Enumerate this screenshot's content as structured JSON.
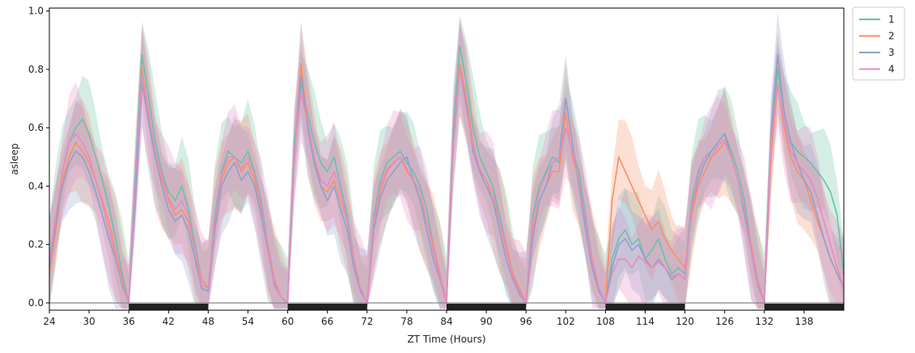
{
  "chart_data": {
    "type": "line",
    "title": "",
    "xlabel": "ZT Time (Hours)",
    "ylabel": "asleep",
    "xlim": [
      24,
      144
    ],
    "ylim": [
      -0.025,
      1.01
    ],
    "x_ticks": [
      24,
      30,
      36,
      42,
      48,
      54,
      60,
      66,
      72,
      78,
      84,
      90,
      96,
      102,
      108,
      114,
      120,
      126,
      132,
      138
    ],
    "y_ticks": [
      0.0,
      0.2,
      0.4,
      0.6,
      0.8,
      1.0
    ],
    "x_tick_labels": [
      "24",
      "30",
      "36",
      "42",
      "48",
      "54",
      "60",
      "66",
      "72",
      "78",
      "84",
      "90",
      "96",
      "102",
      "108",
      "114",
      "120",
      "126",
      "132",
      "138"
    ],
    "y_tick_labels": [
      "0.0",
      "0.2",
      "0.4",
      "0.6",
      "0.8",
      "1.0"
    ],
    "grid": false,
    "legend_placement": "outside-top-right",
    "baseline_y": 0.0,
    "dark_periods": [
      [
        36,
        48
      ],
      [
        60,
        72
      ],
      [
        84,
        96
      ],
      [
        108,
        120
      ],
      [
        132,
        144
      ]
    ],
    "series": [
      {
        "name": "1",
        "color": "#66c2a5",
        "x": [
          24,
          25,
          26,
          27,
          28,
          29,
          30,
          31,
          32,
          33,
          34,
          35,
          36,
          37,
          38,
          39,
          40,
          41,
          42,
          43,
          44,
          45,
          46,
          47,
          48,
          49,
          50,
          51,
          52,
          53,
          54,
          55,
          56,
          57,
          58,
          59,
          60,
          61,
          62,
          63,
          64,
          65,
          66,
          67,
          68,
          69,
          70,
          71,
          72,
          73,
          74,
          75,
          76,
          77,
          78,
          79,
          80,
          81,
          82,
          83,
          84,
          85,
          86,
          87,
          88,
          89,
          90,
          91,
          92,
          93,
          94,
          95,
          96,
          97,
          98,
          99,
          100,
          101,
          102,
          103,
          104,
          105,
          106,
          107,
          108,
          109,
          110,
          111,
          112,
          113,
          114,
          115,
          116,
          117,
          118,
          119,
          120,
          121,
          122,
          123,
          124,
          125,
          126,
          127,
          128,
          129,
          130,
          131,
          132,
          133,
          134,
          135,
          136,
          137,
          138,
          139,
          140,
          141,
          142,
          143,
          144
        ],
        "y": [
          0.15,
          0.3,
          0.45,
          0.55,
          0.6,
          0.63,
          0.58,
          0.5,
          0.42,
          0.33,
          0.22,
          0.1,
          0.0,
          0.45,
          0.85,
          0.7,
          0.55,
          0.45,
          0.38,
          0.35,
          0.4,
          0.32,
          0.2,
          0.08,
          0.05,
          0.3,
          0.45,
          0.52,
          0.5,
          0.48,
          0.52,
          0.45,
          0.35,
          0.2,
          0.08,
          0.02,
          0.0,
          0.55,
          0.75,
          0.65,
          0.55,
          0.48,
          0.45,
          0.5,
          0.4,
          0.3,
          0.15,
          0.05,
          0.0,
          0.3,
          0.42,
          0.48,
          0.5,
          0.52,
          0.48,
          0.45,
          0.4,
          0.32,
          0.2,
          0.1,
          0.0,
          0.6,
          0.88,
          0.75,
          0.6,
          0.5,
          0.45,
          0.4,
          0.3,
          0.2,
          0.1,
          0.05,
          0.0,
          0.3,
          0.4,
          0.45,
          0.5,
          0.48,
          0.6,
          0.52,
          0.45,
          0.3,
          0.15,
          0.05,
          0.0,
          0.15,
          0.22,
          0.25,
          0.2,
          0.22,
          0.15,
          0.18,
          0.22,
          0.15,
          0.1,
          0.12,
          0.1,
          0.35,
          0.45,
          0.5,
          0.52,
          0.55,
          0.58,
          0.52,
          0.45,
          0.35,
          0.2,
          0.08,
          0.0,
          0.55,
          0.8,
          0.65,
          0.55,
          0.52,
          0.5,
          0.48,
          0.45,
          0.42,
          0.38,
          0.3,
          0.1
        ]
      },
      {
        "name": "2",
        "color": "#fc8d62",
        "x": [
          24,
          25,
          26,
          27,
          28,
          29,
          30,
          31,
          32,
          33,
          34,
          35,
          36,
          37,
          38,
          39,
          40,
          41,
          42,
          43,
          44,
          45,
          46,
          47,
          48,
          49,
          50,
          51,
          52,
          53,
          54,
          55,
          56,
          57,
          58,
          59,
          60,
          61,
          62,
          63,
          64,
          65,
          66,
          67,
          68,
          69,
          70,
          71,
          72,
          73,
          74,
          75,
          76,
          77,
          78,
          79,
          80,
          81,
          82,
          83,
          84,
          85,
          86,
          87,
          88,
          89,
          90,
          91,
          92,
          93,
          94,
          95,
          96,
          97,
          98,
          99,
          100,
          101,
          102,
          103,
          104,
          105,
          106,
          107,
          108,
          109,
          110,
          111,
          112,
          113,
          114,
          115,
          116,
          117,
          118,
          119,
          120,
          121,
          122,
          123,
          124,
          125,
          126,
          127,
          128,
          129,
          130,
          131,
          132,
          133,
          134,
          135,
          136,
          137,
          138,
          139,
          140,
          141,
          142,
          143,
          144
        ],
        "y": [
          0.1,
          0.25,
          0.42,
          0.5,
          0.55,
          0.52,
          0.48,
          0.42,
          0.35,
          0.28,
          0.18,
          0.08,
          0.0,
          0.4,
          0.8,
          0.65,
          0.5,
          0.42,
          0.35,
          0.3,
          0.32,
          0.28,
          0.18,
          0.08,
          0.05,
          0.28,
          0.42,
          0.48,
          0.5,
          0.45,
          0.48,
          0.42,
          0.32,
          0.2,
          0.08,
          0.02,
          0.0,
          0.5,
          0.82,
          0.62,
          0.5,
          0.4,
          0.38,
          0.42,
          0.35,
          0.28,
          0.15,
          0.05,
          0.0,
          0.25,
          0.38,
          0.45,
          0.48,
          0.5,
          0.45,
          0.42,
          0.35,
          0.28,
          0.2,
          0.1,
          0.0,
          0.55,
          0.82,
          0.7,
          0.55,
          0.45,
          0.42,
          0.35,
          0.28,
          0.2,
          0.1,
          0.05,
          0.0,
          0.25,
          0.35,
          0.4,
          0.45,
          0.45,
          0.65,
          0.5,
          0.42,
          0.28,
          0.15,
          0.05,
          0.0,
          0.35,
          0.5,
          0.45,
          0.4,
          0.35,
          0.3,
          0.25,
          0.28,
          0.22,
          0.18,
          0.15,
          0.12,
          0.3,
          0.4,
          0.45,
          0.5,
          0.52,
          0.55,
          0.5,
          0.42,
          0.32,
          0.2,
          0.08,
          0.0,
          0.5,
          0.75,
          0.6,
          0.5,
          0.45,
          0.42,
          0.35,
          0.28,
          0.22,
          0.15,
          0.1,
          0.05
        ]
      },
      {
        "name": "3",
        "color": "#8da0cb",
        "x": [
          24,
          25,
          26,
          27,
          28,
          29,
          30,
          31,
          32,
          33,
          34,
          35,
          36,
          37,
          38,
          39,
          40,
          41,
          42,
          43,
          44,
          45,
          46,
          47,
          48,
          49,
          50,
          51,
          52,
          53,
          54,
          55,
          56,
          57,
          58,
          59,
          60,
          61,
          62,
          63,
          64,
          65,
          66,
          67,
          68,
          69,
          70,
          71,
          72,
          73,
          74,
          75,
          76,
          77,
          78,
          79,
          80,
          81,
          82,
          83,
          84,
          85,
          86,
          87,
          88,
          89,
          90,
          91,
          92,
          93,
          94,
          95,
          96,
          97,
          98,
          99,
          100,
          101,
          102,
          103,
          104,
          105,
          106,
          107,
          108,
          109,
          110,
          111,
          112,
          113,
          114,
          115,
          116,
          117,
          118,
          119,
          120,
          121,
          122,
          123,
          124,
          125,
          126,
          127,
          128,
          129,
          130,
          131,
          132,
          133,
          134,
          135,
          136,
          137,
          138,
          139,
          140,
          141,
          142,
          143,
          144
        ],
        "y": [
          0.12,
          0.28,
          0.4,
          0.48,
          0.52,
          0.5,
          0.45,
          0.38,
          0.3,
          0.22,
          0.15,
          0.06,
          0.0,
          0.35,
          0.75,
          0.62,
          0.5,
          0.4,
          0.32,
          0.28,
          0.3,
          0.25,
          0.15,
          0.05,
          0.04,
          0.25,
          0.4,
          0.45,
          0.48,
          0.42,
          0.45,
          0.4,
          0.3,
          0.18,
          0.06,
          0.02,
          0.0,
          0.5,
          0.78,
          0.6,
          0.48,
          0.4,
          0.35,
          0.4,
          0.32,
          0.25,
          0.12,
          0.04,
          0.0,
          0.25,
          0.36,
          0.42,
          0.45,
          0.48,
          0.5,
          0.42,
          0.35,
          0.25,
          0.15,
          0.08,
          0.0,
          0.55,
          0.8,
          0.68,
          0.52,
          0.45,
          0.4,
          0.35,
          0.25,
          0.15,
          0.08,
          0.03,
          0.0,
          0.22,
          0.35,
          0.4,
          0.48,
          0.5,
          0.7,
          0.55,
          0.4,
          0.25,
          0.12,
          0.04,
          0.0,
          0.12,
          0.2,
          0.22,
          0.18,
          0.2,
          0.15,
          0.12,
          0.15,
          0.12,
          0.08,
          0.1,
          0.08,
          0.32,
          0.42,
          0.48,
          0.52,
          0.55,
          0.58,
          0.5,
          0.42,
          0.3,
          0.18,
          0.06,
          0.0,
          0.58,
          0.85,
          0.65,
          0.55,
          0.48,
          0.42,
          0.38,
          0.3,
          0.22,
          0.15,
          0.1,
          0.05
        ]
      },
      {
        "name": "4",
        "color": "#e78ac3",
        "x": [
          24,
          25,
          26,
          27,
          28,
          29,
          30,
          31,
          32,
          33,
          34,
          35,
          36,
          37,
          38,
          39,
          40,
          41,
          42,
          43,
          44,
          45,
          46,
          47,
          48,
          49,
          50,
          51,
          52,
          53,
          54,
          55,
          56,
          57,
          58,
          59,
          60,
          61,
          62,
          63,
          64,
          65,
          66,
          67,
          68,
          69,
          70,
          71,
          72,
          73,
          74,
          75,
          76,
          77,
          78,
          79,
          80,
          81,
          82,
          83,
          84,
          85,
          86,
          87,
          88,
          89,
          90,
          91,
          92,
          93,
          94,
          95,
          96,
          97,
          98,
          99,
          100,
          101,
          102,
          103,
          104,
          105,
          106,
          107,
          108,
          109,
          110,
          111,
          112,
          113,
          114,
          115,
          116,
          117,
          118,
          119,
          120,
          121,
          122,
          123,
          124,
          125,
          126,
          127,
          128,
          129,
          130,
          131,
          132,
          133,
          134,
          135,
          136,
          137,
          138,
          139,
          140,
          141,
          142,
          143,
          144
        ],
        "y": [
          0.14,
          0.3,
          0.45,
          0.55,
          0.58,
          0.55,
          0.5,
          0.42,
          0.34,
          0.25,
          0.16,
          0.07,
          0.0,
          0.42,
          0.78,
          0.64,
          0.52,
          0.44,
          0.36,
          0.32,
          0.35,
          0.3,
          0.18,
          0.06,
          0.05,
          0.28,
          0.44,
          0.5,
          0.5,
          0.46,
          0.5,
          0.44,
          0.33,
          0.19,
          0.07,
          0.02,
          0.0,
          0.52,
          0.72,
          0.62,
          0.5,
          0.42,
          0.4,
          0.45,
          0.38,
          0.28,
          0.14,
          0.05,
          0.0,
          0.28,
          0.4,
          0.46,
          0.48,
          0.5,
          0.46,
          0.42,
          0.38,
          0.28,
          0.18,
          0.09,
          0.0,
          0.58,
          0.8,
          0.66,
          0.54,
          0.46,
          0.42,
          0.38,
          0.28,
          0.18,
          0.09,
          0.04,
          0.0,
          0.28,
          0.38,
          0.44,
          0.48,
          0.5,
          0.6,
          0.52,
          0.42,
          0.28,
          0.14,
          0.05,
          0.0,
          0.1,
          0.15,
          0.15,
          0.12,
          0.16,
          0.14,
          0.12,
          0.14,
          0.12,
          0.09,
          0.1,
          0.08,
          0.33,
          0.44,
          0.5,
          0.5,
          0.54,
          0.56,
          0.5,
          0.42,
          0.32,
          0.19,
          0.07,
          0.0,
          0.55,
          0.75,
          0.62,
          0.52,
          0.48,
          0.45,
          0.42,
          0.36,
          0.28,
          0.2,
          0.12,
          0.05
        ]
      }
    ]
  }
}
